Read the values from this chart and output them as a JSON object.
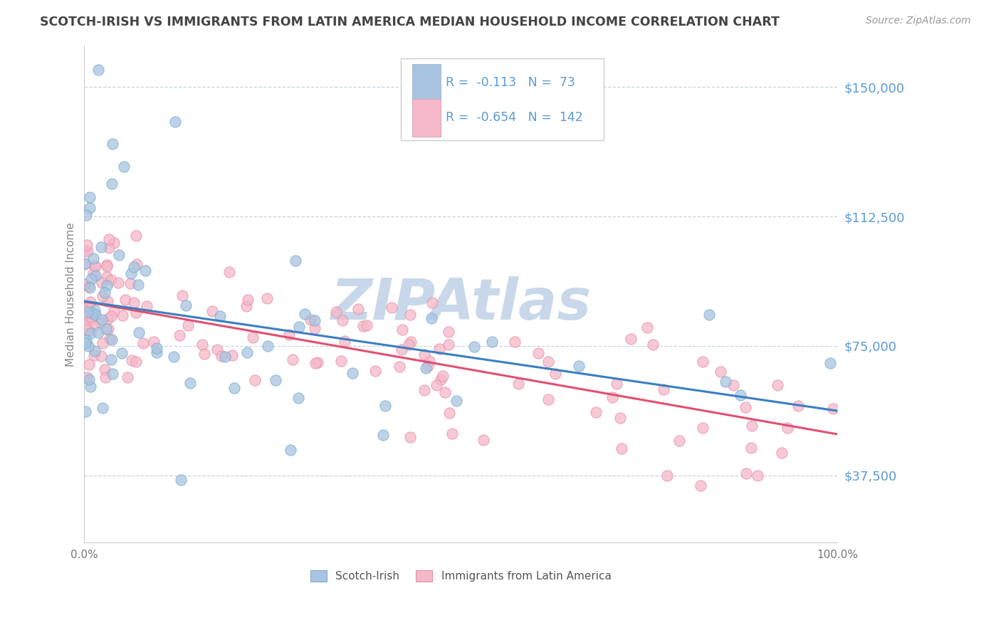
{
  "title": "SCOTCH-IRISH VS IMMIGRANTS FROM LATIN AMERICA MEDIAN HOUSEHOLD INCOME CORRELATION CHART",
  "source": "Source: ZipAtlas.com",
  "ylabel": "Median Household Income",
  "xlim": [
    0,
    100
  ],
  "ylim": [
    18000,
    162000
  ],
  "yticks": [
    37500,
    75000,
    112500,
    150000
  ],
  "ytick_labels": [
    "$37,500",
    "$75,000",
    "$112,500",
    "$150,000"
  ],
  "xticks": [
    0,
    10,
    20,
    30,
    40,
    50,
    60,
    70,
    80,
    90,
    100
  ],
  "xtick_labels": [
    "0.0%",
    "",
    "",
    "",
    "",
    "",
    "",
    "",
    "",
    "",
    "100.0%"
  ],
  "series1_name": "Scotch-Irish",
  "series1_R": -0.113,
  "series1_N": 73,
  "series1_color": "#a8c4e0",
  "series1_edge_color": "#7aaed0",
  "series1_line_color": "#3a7fc1",
  "series2_name": "Immigrants from Latin America",
  "series2_R": -0.654,
  "series2_N": 142,
  "series2_color": "#f4b8c8",
  "series2_edge_color": "#e890aa",
  "series2_line_color": "#e05070",
  "background_color": "#ffffff",
  "grid_color": "#c8d4e0",
  "title_color": "#444444",
  "axis_label_color": "#5b9bd5",
  "ylabel_color": "#888888",
  "watermark": "ZIPAtlas",
  "watermark_color": "#c8d8ea",
  "legend_border_color": "#cccccc"
}
